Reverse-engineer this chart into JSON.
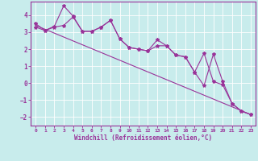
{
  "background_color": "#c8ecec",
  "grid_color": "#b0d8d8",
  "line_color": "#993399",
  "x_label": "Windchill (Refroidissement éolien,°C)",
  "xlim": [
    -0.5,
    23.5
  ],
  "ylim": [
    -2.5,
    4.8
  ],
  "yticks": [
    -2,
    -1,
    0,
    1,
    2,
    3,
    4
  ],
  "xticks": [
    0,
    1,
    2,
    3,
    4,
    5,
    6,
    7,
    8,
    9,
    10,
    11,
    12,
    13,
    14,
    15,
    16,
    17,
    18,
    19,
    20,
    21,
    22,
    23
  ],
  "series1_x": [
    0,
    1,
    2,
    3,
    4,
    5,
    6,
    7,
    8,
    9,
    10,
    11,
    12,
    13,
    14,
    15,
    16,
    17,
    18,
    19,
    20,
    21,
    22,
    23
  ],
  "series1_y": [
    3.5,
    3.1,
    3.3,
    3.4,
    3.9,
    3.05,
    3.05,
    3.3,
    3.7,
    2.6,
    2.1,
    2.0,
    1.9,
    2.55,
    2.2,
    1.65,
    1.55,
    0.65,
    1.75,
    0.1,
    -0.1,
    -1.2,
    -1.65,
    -1.85
  ],
  "series2_x": [
    0,
    1,
    2,
    3,
    4,
    5,
    6,
    7,
    8,
    9,
    10,
    11,
    12,
    13,
    14,
    15,
    16,
    17,
    18,
    19,
    20,
    21,
    22,
    23
  ],
  "series2_y": [
    3.3,
    3.1,
    3.35,
    4.55,
    3.95,
    3.05,
    3.05,
    3.3,
    3.7,
    2.6,
    2.1,
    2.0,
    1.9,
    2.2,
    2.2,
    1.65,
    1.55,
    0.65,
    -0.15,
    1.7,
    0.1,
    -1.2,
    -1.65,
    -1.85
  ],
  "trend_x": [
    0,
    23
  ],
  "trend_y": [
    3.4,
    -1.85
  ]
}
